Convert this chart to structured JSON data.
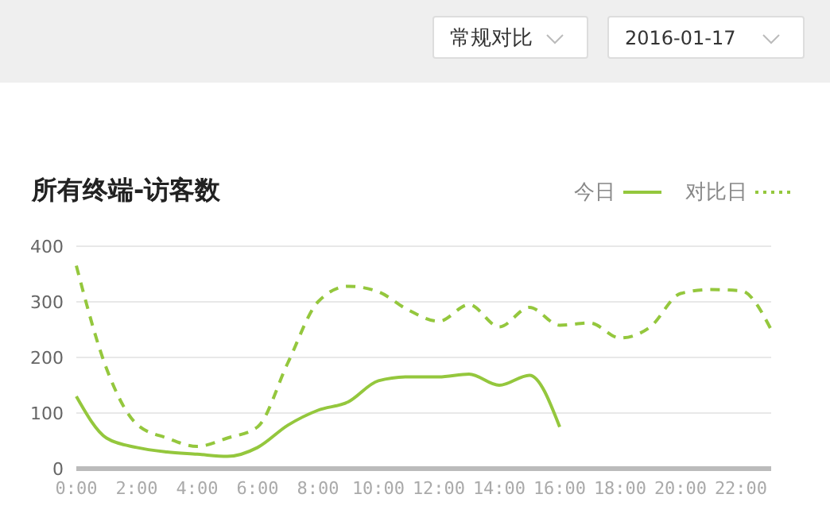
{
  "chart_data": {
    "type": "line",
    "title": "所有终端-访客数",
    "annotations": [
      "常规对比",
      "2016-01-17"
    ],
    "categories": [
      "0:00",
      null,
      "2:00",
      null,
      "4:00",
      null,
      "6:00",
      null,
      "8:00",
      null,
      "10:00",
      null,
      "12:00",
      null,
      "14:00",
      null,
      "16:00",
      null,
      "18:00",
      null,
      "20:00",
      null,
      "22:00",
      null
    ],
    "series": [
      {
        "name": "今日",
        "color": "#94c73d",
        "line_style": "solid",
        "values": [
          130,
          55,
          38,
          30,
          26,
          22,
          38,
          78,
          105,
          120,
          158,
          165,
          165,
          170,
          150,
          168,
          75,
          null,
          null,
          null,
          null,
          null,
          null,
          null
        ]
      },
      {
        "name": "对比日",
        "color": "#94c73d",
        "line_style": "dashed",
        "values": [
          365,
          180,
          80,
          55,
          40,
          55,
          75,
          190,
          300,
          328,
          318,
          285,
          265,
          295,
          255,
          290,
          258,
          262,
          235,
          255,
          315,
          322,
          320,
          250
        ]
      }
    ],
    "ylim": [
      0,
      400
    ],
    "yticks": [
      0,
      100,
      200,
      300,
      400
    ],
    "grid": "y",
    "legend": "top right",
    "marker": "none"
  }
}
